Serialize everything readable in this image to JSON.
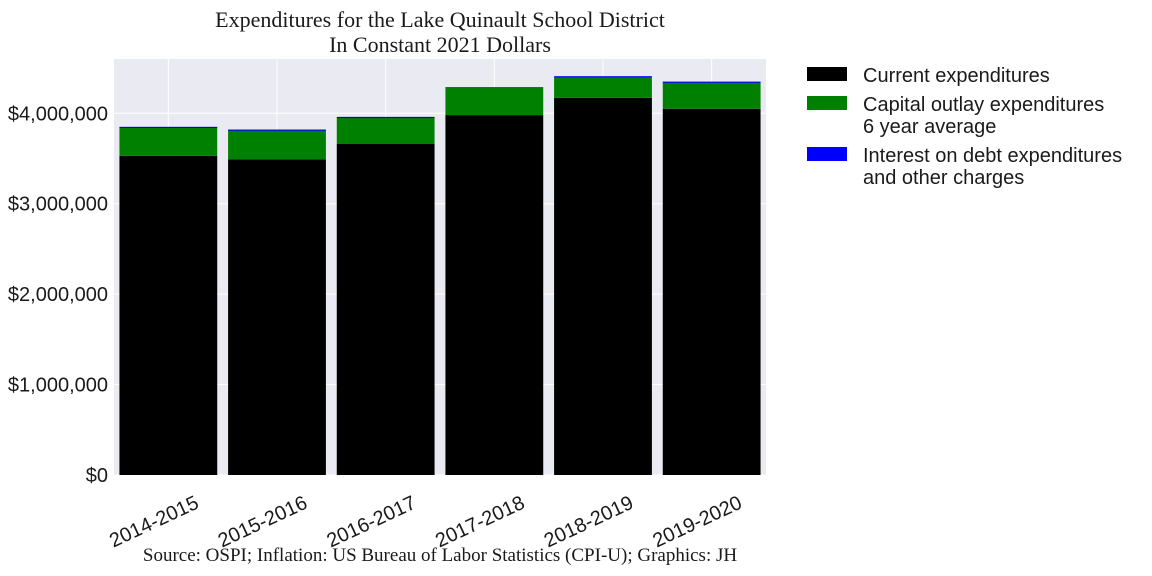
{
  "chart_data": {
    "type": "bar",
    "stacked": true,
    "title": [
      "Expenditures for the Lake Quinault School District",
      "In Constant 2021 Dollars"
    ],
    "source": "Source: OSPI; Inflation: US Bureau of Labor Statistics (CPI-U); Graphics: JH",
    "categories": [
      "2014-2015",
      "2015-2016",
      "2016-2017",
      "2017-2018",
      "2018-2019",
      "2019-2020"
    ],
    "series": [
      {
        "name": [
          "Current expenditures"
        ],
        "color": "#000000",
        "values": [
          3530000,
          3490000,
          3660000,
          3980000,
          4170000,
          4050000
        ]
      },
      {
        "name": [
          "Capital outlay expenditures",
          "6 year average"
        ],
        "color": "#008000",
        "values": [
          310000,
          320000,
          290000,
          310000,
          230000,
          290000
        ]
      },
      {
        "name": [
          "Interest on debt expenditures",
          "and other charges"
        ],
        "color": "#0000ff",
        "values": [
          10000,
          10000,
          10000,
          0,
          10000,
          10000
        ]
      }
    ],
    "ylim": [
      0,
      4600000
    ],
    "yticks": [
      0,
      1000000,
      2000000,
      3000000,
      4000000
    ],
    "ytick_labels": [
      "$0",
      "$1,000,000",
      "$2,000,000",
      "$3,000,000",
      "$4,000,000"
    ],
    "grid": true,
    "legend_position": "outside-right"
  }
}
